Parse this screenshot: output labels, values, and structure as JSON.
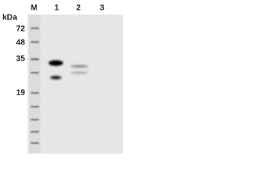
{
  "header": {
    "unit": "kDa",
    "lanes": [
      "M",
      "1",
      "2",
      "3"
    ]
  },
  "markers": [
    "72",
    "48",
    "35",
    "19"
  ]
}
